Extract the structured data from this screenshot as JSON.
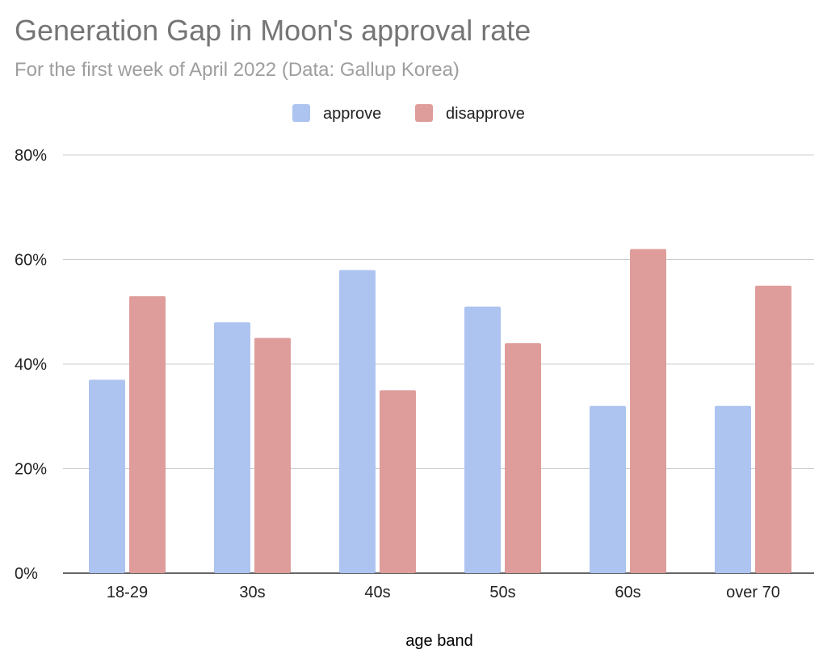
{
  "chart_data": {
    "type": "bar",
    "title": "Generation Gap in Moon's approval rate",
    "subtitle": "For the first week of April 2022 (Data: Gallup Korea)",
    "xlabel": "age band",
    "ylabel": "",
    "categories": [
      "18-29",
      "30s",
      "40s",
      "50s",
      "60s",
      "over 70"
    ],
    "series": [
      {
        "name": "approve",
        "color": "#aec4f0",
        "values": [
          37,
          48,
          58,
          51,
          32,
          32
        ]
      },
      {
        "name": "disapprove",
        "color": "#de9d9b",
        "values": [
          53,
          45,
          35,
          44,
          62,
          55
        ]
      }
    ],
    "ylim": [
      0,
      80
    ],
    "yticks": [
      "0%",
      "20%",
      "40%",
      "60%",
      "80%"
    ],
    "ytick_values": [
      0,
      20,
      40,
      60,
      80
    ],
    "grid": true,
    "legend": "top"
  }
}
